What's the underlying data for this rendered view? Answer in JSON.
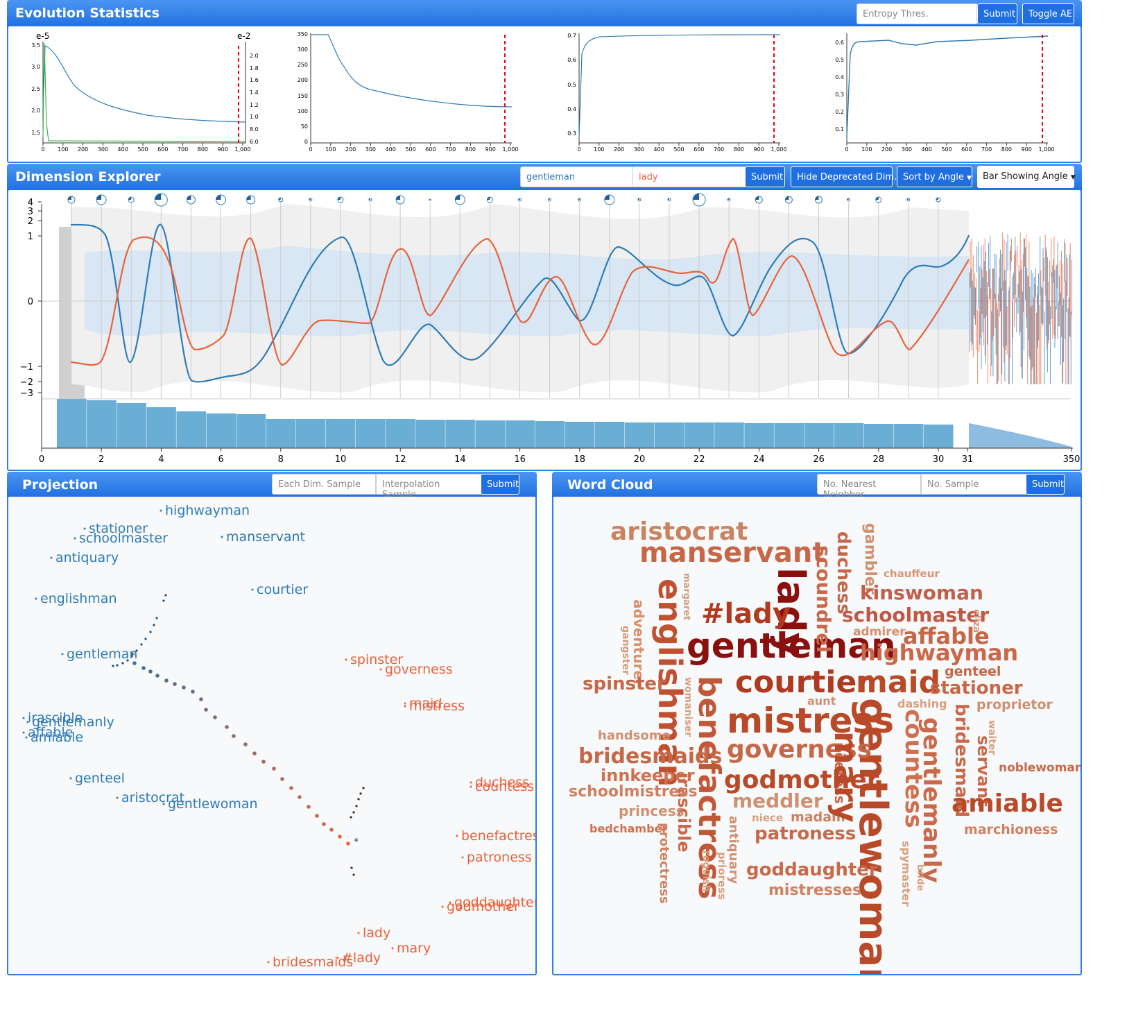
{
  "evolution": {
    "title": "Evolution Statistics",
    "entropy_placeholder": "Entropy Thres.",
    "submit_label": "Submit",
    "toggle_label": "Toggle AE",
    "charts": [
      {
        "left_exp": "e-5",
        "right_exp": "e-2",
        "yticks": [
          "3.5",
          "3.0",
          "2.5",
          "2.0",
          "1.5"
        ],
        "ryticks": [
          "2.0",
          "1.8",
          "1.6",
          "1.4",
          "1.2",
          "1.0",
          "8.0",
          "6.0"
        ],
        "xticks": [
          "0",
          "100",
          "200",
          "300",
          "400",
          "500",
          "600",
          "700",
          "800",
          "900",
          "1,000"
        ]
      },
      {
        "yticks": [
          "350",
          "300",
          "250",
          "200",
          "150",
          "100",
          "50",
          "0"
        ],
        "xticks": [
          "0",
          "100",
          "200",
          "300",
          "400",
          "500",
          "600",
          "700",
          "800",
          "900",
          "1,000"
        ]
      },
      {
        "yticks": [
          "0.7",
          "0.6",
          "0.5",
          "0.4",
          "0.3"
        ],
        "xticks": [
          "0",
          "100",
          "200",
          "300",
          "400",
          "500",
          "600",
          "700",
          "800",
          "900",
          "1,000"
        ]
      },
      {
        "yticks": [
          "0.6",
          "0.5",
          "0.4",
          "0.3",
          "0.2",
          "0.1"
        ],
        "xticks": [
          "0",
          "100",
          "200",
          "300",
          "400",
          "500",
          "600",
          "700",
          "800",
          "900",
          "1,000"
        ]
      }
    ]
  },
  "dimension": {
    "title": "Dimension Explorer",
    "word1": "gentleman",
    "word2": "lady",
    "submit_label": "Submit",
    "hide_label": "Hide Deprecated Dim.",
    "sort_label": "Sort by Angle",
    "bar_label": "Bar Showing Angle",
    "yticks": [
      "4",
      "3",
      "2",
      "1",
      "0",
      "−1",
      "−2",
      "−3"
    ],
    "xticks": [
      "0",
      "2",
      "4",
      "6",
      "8",
      "10",
      "12",
      "14",
      "16",
      "18",
      "20",
      "22",
      "24",
      "26",
      "28",
      "30",
      "31",
      "350"
    ],
    "colors": {
      "gentleman": "#2e7bb5",
      "lady": "#e8623c"
    }
  },
  "projection": {
    "title": "Projection",
    "each_dim_placeholder": "Each Dim. Sample",
    "interp_placeholder": "Interpolation Sample",
    "submit_label": "Submit",
    "blue_words": [
      {
        "t": "highwayman"
      },
      {
        "t": "stationer"
      },
      {
        "t": "schoolmaster"
      },
      {
        "t": "manservant"
      },
      {
        "t": "antiquary"
      },
      {
        "t": "courtier"
      },
      {
        "t": "englishman"
      },
      {
        "t": "gentleman"
      },
      {
        "t": "irascible"
      },
      {
        "t": "gentlemanly"
      },
      {
        "t": "affable"
      },
      {
        "t": "amiable"
      },
      {
        "t": "genteel"
      },
      {
        "t": "aristocrat"
      },
      {
        "t": "gentlewoman"
      }
    ],
    "red_words": [
      {
        "t": "spinster"
      },
      {
        "t": "governess"
      },
      {
        "t": "maid"
      },
      {
        "t": "mistress"
      },
      {
        "t": "duchess"
      },
      {
        "t": "countess"
      },
      {
        "t": "benefactress"
      },
      {
        "t": "patroness"
      },
      {
        "t": "goddaughter"
      },
      {
        "t": "godmother"
      },
      {
        "t": "lady"
      },
      {
        "t": "mary"
      },
      {
        "t": "bridesmaids"
      },
      {
        "t": "#lady"
      }
    ]
  },
  "wordcloud": {
    "title": "Word Cloud",
    "nn_placeholder": "No. Nearest Neighbor",
    "sample_placeholder": "No. Sample",
    "submit_label": "Submit",
    "words": [
      {
        "t": "aristocrat"
      },
      {
        "t": "manservant"
      },
      {
        "t": "lady"
      },
      {
        "t": "englishman"
      },
      {
        "t": "#lady"
      },
      {
        "t": "gentleman"
      },
      {
        "t": "scoundrel"
      },
      {
        "t": "duchess"
      },
      {
        "t": "gambler"
      },
      {
        "t": "chauffeur"
      },
      {
        "t": "kinswoman"
      },
      {
        "t": "schoolmaster"
      },
      {
        "t": "admirer"
      },
      {
        "t": "affable"
      },
      {
        "t": "highwayman"
      },
      {
        "t": "margaret"
      },
      {
        "t": "adventurer"
      },
      {
        "t": "gangster"
      },
      {
        "t": "eliza"
      },
      {
        "t": "courtier"
      },
      {
        "t": "maid"
      },
      {
        "t": "genteel"
      },
      {
        "t": "stationer"
      },
      {
        "t": "spinster"
      },
      {
        "t": "womaniser"
      },
      {
        "t": "benefactress"
      },
      {
        "t": "aunt"
      },
      {
        "t": "dashing"
      },
      {
        "t": "proprietor"
      },
      {
        "t": "mistress"
      },
      {
        "t": "gentlewoman"
      },
      {
        "t": "countess"
      },
      {
        "t": "gentlemanly"
      },
      {
        "t": "bridesmaid"
      },
      {
        "t": "handsome"
      },
      {
        "t": "governess"
      },
      {
        "t": "peeress"
      },
      {
        "t": "waiter"
      },
      {
        "t": "servant"
      },
      {
        "t": "bridesmaids"
      },
      {
        "t": "noblewoman"
      },
      {
        "t": "innkeeper"
      },
      {
        "t": "irascible"
      },
      {
        "t": "godmother"
      },
      {
        "t": "schoolmistress"
      },
      {
        "t": "meddler"
      },
      {
        "t": "amiable"
      },
      {
        "t": "princess"
      },
      {
        "t": "niece"
      },
      {
        "t": "madam"
      },
      {
        "t": "mary"
      },
      {
        "t": "bedchamber"
      },
      {
        "t": "marchioness"
      },
      {
        "t": "patroness"
      },
      {
        "t": "protectress"
      },
      {
        "t": "antiquary"
      },
      {
        "t": "spymaster"
      },
      {
        "t": "bride"
      },
      {
        "t": "prioress"
      },
      {
        "t": "roguish"
      },
      {
        "t": "goddaughter"
      },
      {
        "t": "mistresses"
      }
    ]
  }
}
